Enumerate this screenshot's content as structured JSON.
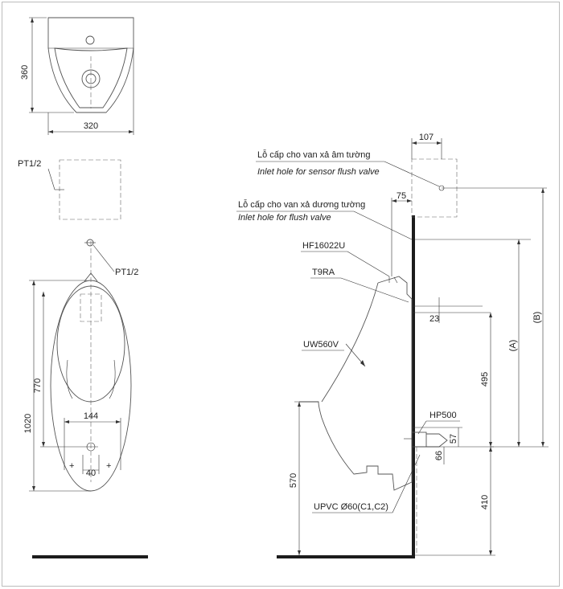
{
  "colors": {
    "line": "#444444",
    "wall": "#1c1c1c",
    "text": "#222222",
    "frame": "#bcbcbc"
  },
  "dimensions": {
    "top_height": "360",
    "top_width": "320",
    "total_height": "1020",
    "body_height": "770",
    "drain_spacing": "144",
    "drain_width": "40",
    "side_top": "107",
    "side_inlet_offset": "75",
    "side_23": "23",
    "side_495": "495",
    "side_A": "(A)",
    "side_B": "(B)",
    "side_57": "57",
    "side_66": "66",
    "side_410": "410",
    "side_570": "570"
  },
  "labels": {
    "pt_left": "PT1/2",
    "pt_right": "PT1/2",
    "sensor_vi": "Lỗ cấp cho van xả âm tường",
    "sensor_en": "Inlet hole for sensor flush valve",
    "flush_vi": "Lỗ cấp cho van xả dương tường",
    "flush_en": "Inlet hole for flush valve",
    "hf": "HF16022U",
    "t9ra": "T9RA",
    "uw": "UW560V",
    "hp": "HP500",
    "upvc": "UPVC Ø60(C1,C2)"
  }
}
